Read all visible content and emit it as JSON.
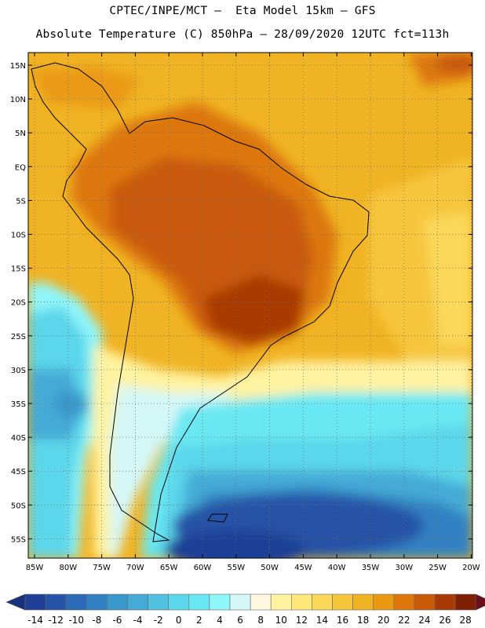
{
  "header": {
    "line1": "CPTEC/INPE/MCT –  Eta Model 15km – GFS",
    "line2": "Absolute Temperature (C) 850hPa – 28/09/2020 12UTC fct=113h"
  },
  "map": {
    "lat_labels": [
      "15N",
      "10N",
      "5N",
      "EQ",
      "5S",
      "10S",
      "15S",
      "20S",
      "25S",
      "30S",
      "35S",
      "40S",
      "45S",
      "50S",
      "55S"
    ],
    "lon_labels": [
      "85W",
      "80W",
      "75W",
      "70W",
      "65W",
      "60W",
      "55W",
      "50W",
      "45W",
      "40W",
      "35W",
      "30W",
      "25W",
      "20W"
    ],
    "lat_values": [
      15,
      10,
      5,
      0,
      -5,
      -10,
      -15,
      -20,
      -25,
      -30,
      -35,
      -40,
      -45,
      -50,
      -55
    ],
    "lon_values": [
      -85,
      -80,
      -75,
      -70,
      -65,
      -60,
      -55,
      -50,
      -45,
      -40,
      -35,
      -30,
      -25,
      -20
    ],
    "gridlines": "dotted"
  },
  "colorbar": {
    "labels": [
      "-14",
      "-12",
      "-10",
      "-8",
      "-6",
      "-4",
      "-2",
      "0",
      "2",
      "4",
      "6",
      "8",
      "10",
      "12",
      "14",
      "16",
      "18",
      "20",
      "22",
      "24",
      "26",
      "28"
    ],
    "colors": [
      "#1f3f96",
      "#2553a6",
      "#2b6ab6",
      "#3181c2",
      "#3a97cc",
      "#44abd6",
      "#50c1e0",
      "#5cd6ea",
      "#69e8f3",
      "#8ff6fa",
      "#d4f7f7",
      "#fff8e1",
      "#fff3a0",
      "#ffe77a",
      "#fbd85a",
      "#f6c63d",
      "#f0b323",
      "#ea9a12",
      "#dd770b",
      "#c95a08",
      "#a93a05",
      "#7f2003"
    ],
    "under_color": "#17307f",
    "over_color": "#6b0f1c"
  }
}
